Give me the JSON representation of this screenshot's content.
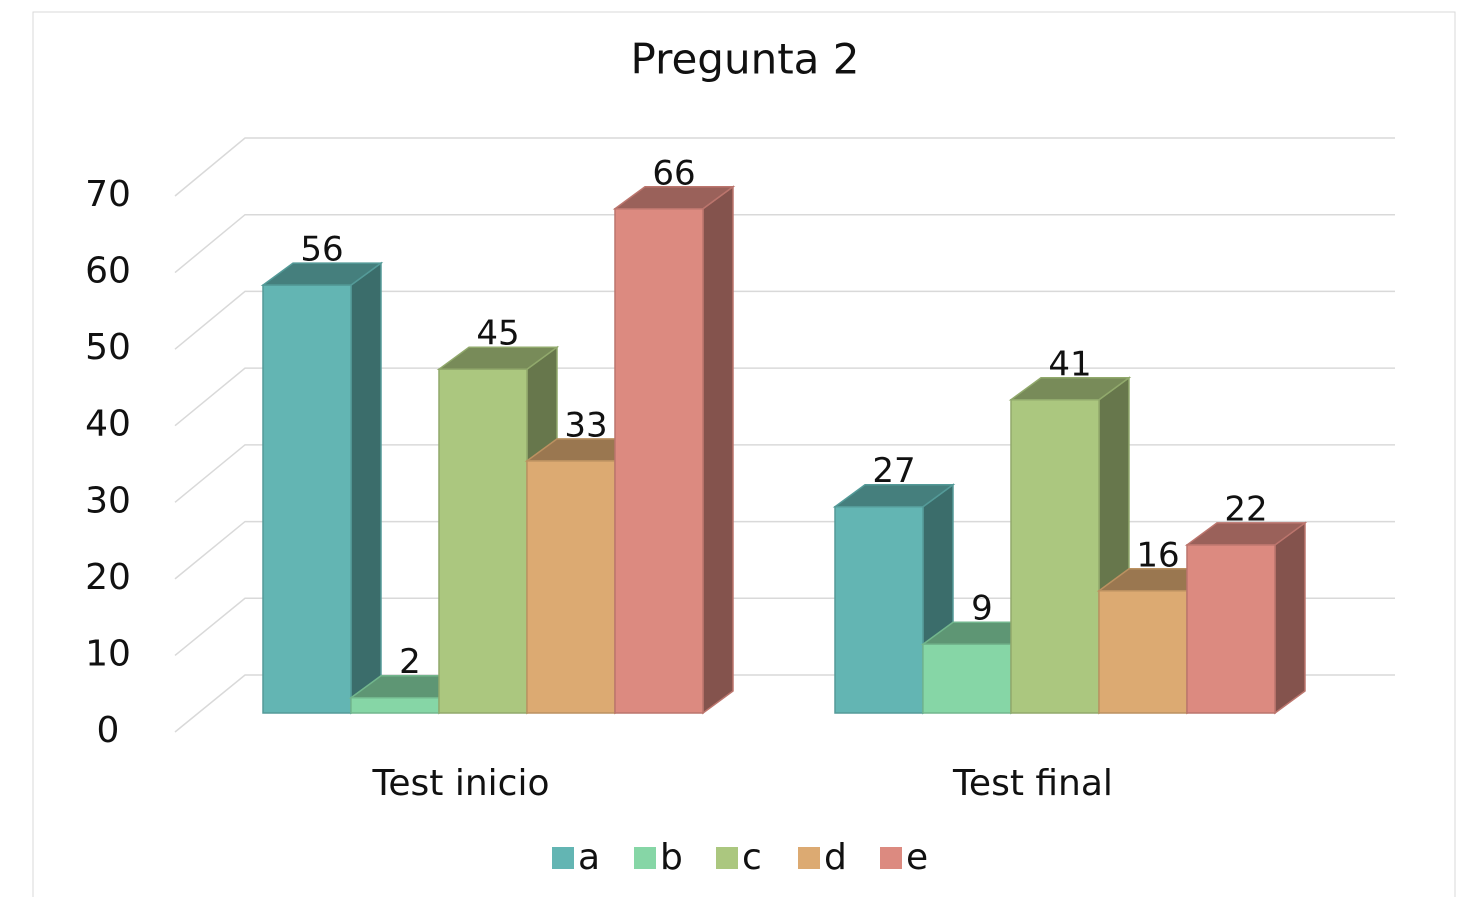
{
  "chart_data": {
    "type": "bar3d",
    "title": "Pregunta 2",
    "categories": [
      "Test inicio",
      "Test final"
    ],
    "series": [
      {
        "name": "a",
        "color": "#63b5b3",
        "values": [
          56,
          27
        ]
      },
      {
        "name": "b",
        "color": "#86d6a6",
        "values": [
          2,
          9
        ]
      },
      {
        "name": "c",
        "color": "#abc77f",
        "values": [
          45,
          41
        ]
      },
      {
        "name": "d",
        "color": "#dcaa72",
        "values": [
          33,
          16
        ]
      },
      {
        "name": "e",
        "color": "#dc8a80",
        "values": [
          66,
          22
        ]
      }
    ],
    "ylim": [
      0,
      70
    ],
    "yticks": [
      0,
      10,
      20,
      30,
      40,
      50,
      60,
      70
    ],
    "grid": true,
    "legend": "bottom"
  }
}
